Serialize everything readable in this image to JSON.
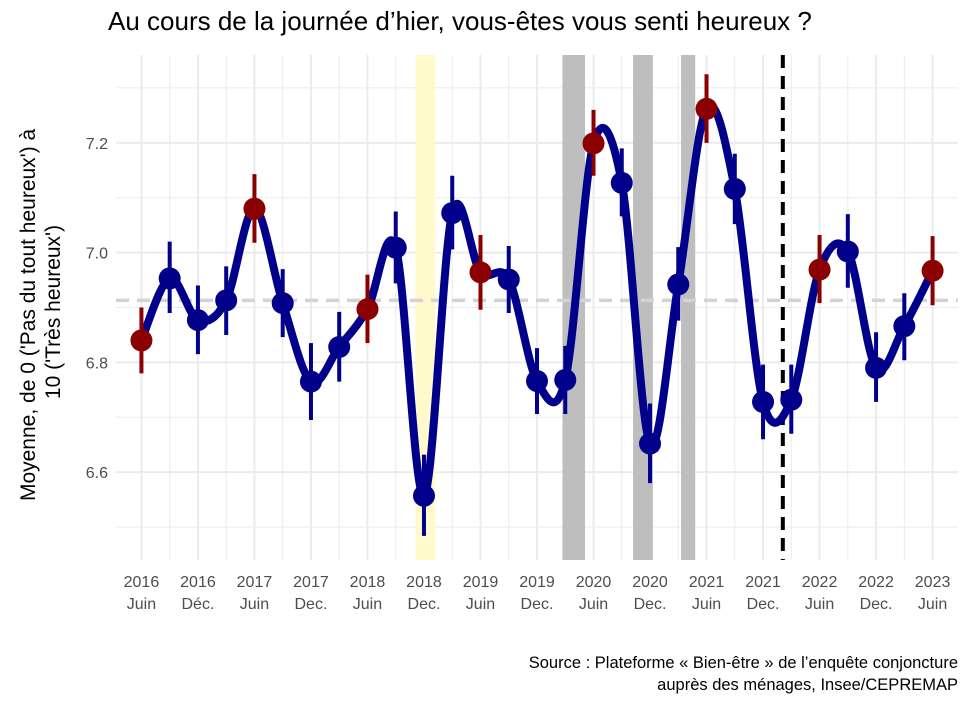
{
  "chart_data": {
    "type": "line",
    "title": "Au cours de la journée d’hier, vous-êtes vous senti heureux ?",
    "ylabel_lines": [
      "Moyenne, de 0 ('Pas du tout heureux') à",
      "10 ('Très heureux')"
    ],
    "caption_lines": [
      "Source : Plateforme « Bien-être » de l’enquête conjoncture",
      "auprès des ménages, Insee/CEPREMAP"
    ],
    "ylim": [
      6.44,
      7.36
    ],
    "xlim": [
      -0.45,
      14.45
    ],
    "y_ticks": [
      6.6,
      6.8,
      7.0,
      7.2
    ],
    "x_ticks": [
      {
        "year": "2016",
        "period": "Juin"
      },
      {
        "year": "2016",
        "period": "Déc."
      },
      {
        "year": "2017",
        "period": "Juin"
      },
      {
        "year": "2017",
        "period": "Dec."
      },
      {
        "year": "2018",
        "period": "Juin"
      },
      {
        "year": "2018",
        "period": "Dec."
      },
      {
        "year": "2019",
        "period": "Juin"
      },
      {
        "year": "2019",
        "period": "Dec."
      },
      {
        "year": "2020",
        "period": "Juin"
      },
      {
        "year": "2020",
        "period": "Dec."
      },
      {
        "year": "2021",
        "period": "Juin"
      },
      {
        "year": "2021",
        "period": "Dec."
      },
      {
        "year": "2022",
        "period": "Juin"
      },
      {
        "year": "2022",
        "period": "Dec."
      },
      {
        "year": "2023",
        "period": "Juin"
      }
    ],
    "mean_line": 6.913,
    "shaded_periods": [
      {
        "from": 4.85,
        "to": 5.2,
        "color": "#fff9cc"
      },
      {
        "from": 7.45,
        "to": 7.85,
        "color": "#bebebe"
      },
      {
        "from": 8.7,
        "to": 9.05,
        "color": "#bebebe"
      },
      {
        "from": 9.55,
        "to": 9.8,
        "color": "#bebebe"
      }
    ],
    "vline_x": 11.35,
    "points": [
      {
        "x": 0,
        "y": 6.84,
        "lo": 6.78,
        "hi": 6.9,
        "highlight": true
      },
      {
        "x": 0.5,
        "y": 6.953,
        "lo": 6.89,
        "hi": 7.02,
        "highlight": false
      },
      {
        "x": 1,
        "y": 6.877,
        "lo": 6.815,
        "hi": 6.94,
        "highlight": false
      },
      {
        "x": 1.5,
        "y": 6.913,
        "lo": 6.85,
        "hi": 6.975,
        "highlight": false
      },
      {
        "x": 2,
        "y": 7.08,
        "lo": 7.018,
        "hi": 7.143,
        "highlight": true
      },
      {
        "x": 2.5,
        "y": 6.908,
        "lo": 6.846,
        "hi": 6.97,
        "highlight": false
      },
      {
        "x": 3,
        "y": 6.765,
        "lo": 6.695,
        "hi": 6.835,
        "highlight": false
      },
      {
        "x": 3.5,
        "y": 6.828,
        "lo": 6.765,
        "hi": 6.892,
        "highlight": false
      },
      {
        "x": 4,
        "y": 6.897,
        "lo": 6.835,
        "hi": 6.96,
        "highlight": true
      },
      {
        "x": 4.5,
        "y": 7.009,
        "lo": 6.944,
        "hi": 7.075,
        "highlight": false
      },
      {
        "x": 5,
        "y": 6.557,
        "lo": 6.484,
        "hi": 6.632,
        "highlight": false
      },
      {
        "x": 5.5,
        "y": 7.072,
        "lo": 7.006,
        "hi": 7.14,
        "highlight": false
      },
      {
        "x": 6,
        "y": 6.964,
        "lo": 6.896,
        "hi": 7.032,
        "highlight": true
      },
      {
        "x": 6.5,
        "y": 6.951,
        "lo": 6.89,
        "hi": 7.012,
        "highlight": false
      },
      {
        "x": 7,
        "y": 6.766,
        "lo": 6.706,
        "hi": 6.826,
        "highlight": false
      },
      {
        "x": 7.5,
        "y": 6.768,
        "lo": 6.706,
        "hi": 6.83,
        "highlight": false
      },
      {
        "x": 8,
        "y": 7.199,
        "lo": 7.14,
        "hi": 7.26,
        "highlight": true
      },
      {
        "x": 8.5,
        "y": 7.127,
        "lo": 7.066,
        "hi": 7.19,
        "highlight": false
      },
      {
        "x": 9,
        "y": 6.652,
        "lo": 6.58,
        "hi": 6.725,
        "highlight": false
      },
      {
        "x": 9.5,
        "y": 6.942,
        "lo": 6.876,
        "hi": 7.01,
        "highlight": false
      },
      {
        "x": 10,
        "y": 7.262,
        "lo": 7.2,
        "hi": 7.325,
        "highlight": true
      },
      {
        "x": 10.5,
        "y": 7.116,
        "lo": 7.052,
        "hi": 7.18,
        "highlight": false
      },
      {
        "x": 11,
        "y": 6.728,
        "lo": 6.66,
        "hi": 6.796,
        "highlight": false
      },
      {
        "x": 11.5,
        "y": 6.732,
        "lo": 6.67,
        "hi": 6.796,
        "highlight": false
      },
      {
        "x": 12,
        "y": 6.969,
        "lo": 6.908,
        "hi": 7.032,
        "highlight": true
      },
      {
        "x": 12.5,
        "y": 7.002,
        "lo": 6.936,
        "hi": 7.07,
        "highlight": false
      },
      {
        "x": 13,
        "y": 6.79,
        "lo": 6.728,
        "hi": 6.855,
        "highlight": false
      },
      {
        "x": 13.5,
        "y": 6.866,
        "lo": 6.804,
        "hi": 6.926,
        "highlight": false
      },
      {
        "x": 14,
        "y": 6.967,
        "lo": 6.904,
        "hi": 7.03,
        "highlight": true
      }
    ],
    "colors": {
      "line": "#00008b",
      "point": "#00008b",
      "highlight": "#8b0000",
      "mean_line": "#d3d3d3",
      "grid": "#ebebeb",
      "vline": "#000000"
    }
  }
}
